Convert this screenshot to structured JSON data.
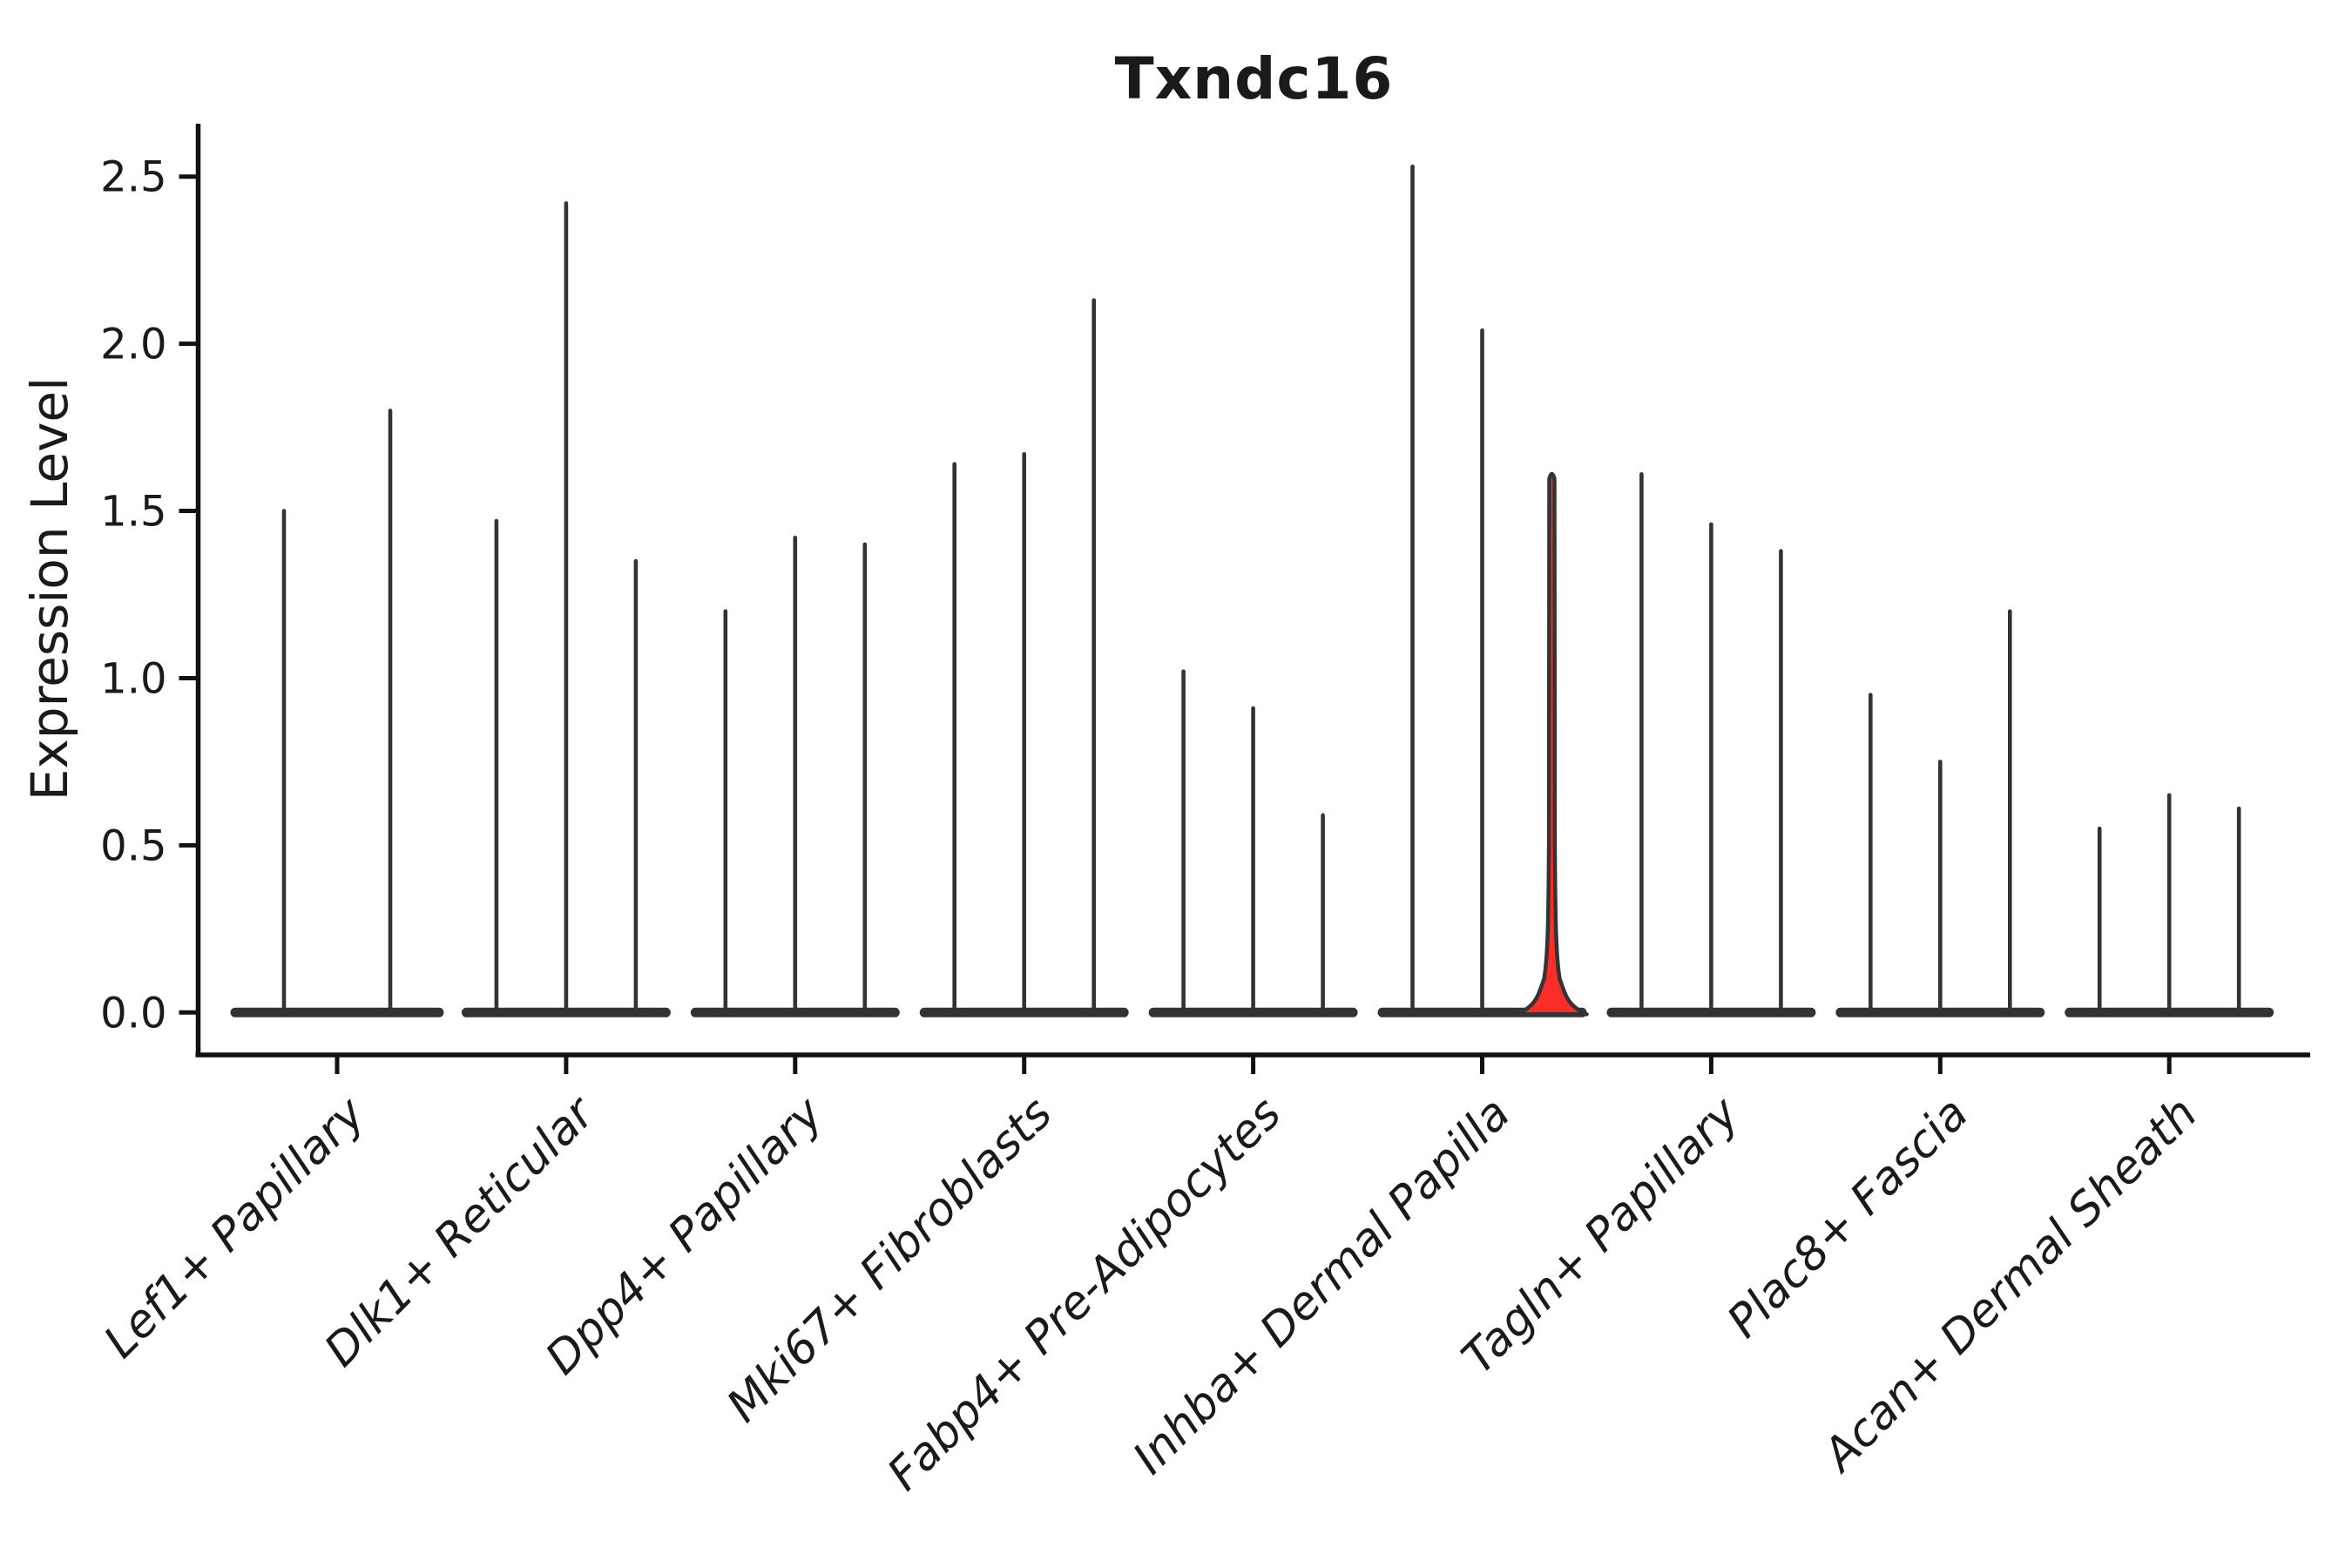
{
  "figure": {
    "title": "Txndc16",
    "ylabel": "Expression Level"
  },
  "colors": {
    "background": "#ffffff",
    "axis": "#111111",
    "text": "#1a1a1a",
    "violin_stroke": "#333333",
    "highlight_fill": "#fa2d28"
  },
  "chart_data": {
    "type": "violin",
    "title": "Txndc16",
    "xlabel": "",
    "ylabel": "Expression Level",
    "ylim": [
      -0.13,
      2.66
    ],
    "yticks": [
      0.0,
      0.5,
      1.0,
      1.5,
      2.0,
      2.5
    ],
    "grid": false,
    "legend": "none",
    "description": "Needle-shaped violin plot: expression mass concentrated at 0 for every violin, with thin spikes reaching each violin's maximum expression value. Each cell-type category holds 2-3 violins whose flat bases merge at y=0. One violin (third of Inhba+ Dermal Papilla) is highlighted red with a visible bell-shaped density at 0.",
    "categories": [
      "Lef1+ Papillary",
      "Dlk1+ Reticular",
      "Dpp4+ Papillary",
      "Mki67+ Fibroblasts",
      "Fabp4+ Pre-Adipocytes",
      "Inhba+ Dermal Papilla",
      "Tagln+ Papillary",
      "Plac8+ Fascia",
      "Acan+ Dermal Sheath"
    ],
    "groups": [
      {
        "category": "Lef1+ Papillary",
        "violins": [
          {
            "max": 1.5
          },
          {
            "max": 1.8
          }
        ]
      },
      {
        "category": "Dlk1+ Reticular",
        "violins": [
          {
            "max": 1.47
          },
          {
            "max": 2.42
          },
          {
            "max": 1.35
          }
        ]
      },
      {
        "category": "Dpp4+ Papillary",
        "violins": [
          {
            "max": 1.2
          },
          {
            "max": 1.42
          },
          {
            "max": 1.4
          }
        ]
      },
      {
        "category": "Mki67+ Fibroblasts",
        "violins": [
          {
            "max": 1.64
          },
          {
            "max": 1.67
          },
          {
            "max": 2.13
          }
        ]
      },
      {
        "category": "Fabp4+ Pre-Adipocytes",
        "violins": [
          {
            "max": 1.02
          },
          {
            "max": 0.91
          },
          {
            "max": 0.59
          }
        ]
      },
      {
        "category": "Inhba+ Dermal Papilla",
        "violins": [
          {
            "max": 2.53
          },
          {
            "max": 2.04
          },
          {
            "max": 1.62,
            "highlight": true,
            "zero_bell_top": 0.13
          }
        ]
      },
      {
        "category": "Tagln+ Papillary",
        "violins": [
          {
            "max": 1.61
          },
          {
            "max": 1.46
          },
          {
            "max": 1.38
          }
        ]
      },
      {
        "category": "Plac8+ Fascia",
        "violins": [
          {
            "max": 0.95
          },
          {
            "max": 0.75
          },
          {
            "max": 1.2
          }
        ]
      },
      {
        "category": "Acan+ Dermal Sheath",
        "violins": [
          {
            "max": 0.55
          },
          {
            "max": 0.65
          },
          {
            "max": 0.61
          }
        ]
      }
    ]
  }
}
